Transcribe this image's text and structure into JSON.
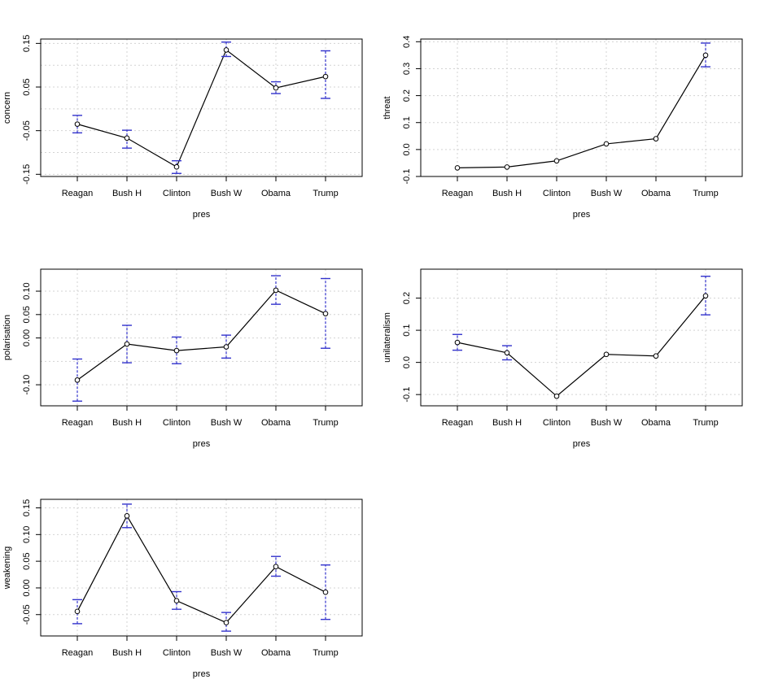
{
  "chart_data": [
    {
      "type": "line",
      "xlabel": "pres",
      "ylabel": "concern",
      "categories": [
        "Reagan",
        "Bush H",
        "Clinton",
        "Bush W",
        "Obama",
        "Trump"
      ],
      "values": [
        -0.035,
        -0.067,
        -0.133,
        0.135,
        0.048,
        0.074
      ],
      "lower": [
        -0.055,
        -0.09,
        -0.148,
        0.12,
        0.035,
        0.024
      ],
      "upper": [
        -0.015,
        -0.049,
        -0.119,
        0.153,
        0.062,
        0.133
      ],
      "ylim": [
        -0.155,
        0.16
      ],
      "yticks": [
        -0.15,
        -0.05,
        0.05,
        0.15
      ],
      "ytick_labels": [
        "-0.15",
        "-0.05",
        "0.05",
        "0.15"
      ],
      "ygrid": [
        -0.15,
        -0.1,
        -0.05,
        0.0,
        0.05,
        0.1,
        0.15
      ],
      "grid": true
    },
    {
      "type": "line",
      "xlabel": "pres",
      "ylabel": "threat",
      "categories": [
        "Reagan",
        "Bush H",
        "Clinton",
        "Bush W",
        "Obama",
        "Trump"
      ],
      "values": [
        -0.068,
        -0.065,
        -0.042,
        0.021,
        0.04,
        0.35
      ],
      "lower": [
        -0.068,
        -0.065,
        -0.042,
        0.021,
        0.04,
        0.307
      ],
      "upper": [
        -0.068,
        -0.065,
        -0.042,
        0.021,
        0.04,
        0.395
      ],
      "ylim": [
        -0.1,
        0.41
      ],
      "yticks": [
        -0.1,
        0.0,
        0.1,
        0.2,
        0.3,
        0.4
      ],
      "ytick_labels": [
        "-0.1",
        "0.0",
        "0.1",
        "0.2",
        "0.3",
        "0.4"
      ],
      "ygrid": [
        -0.1,
        0.0,
        0.1,
        0.2,
        0.3,
        0.4
      ],
      "grid": true
    },
    {
      "type": "line",
      "xlabel": "pres",
      "ylabel": "polarisation",
      "categories": [
        "Reagan",
        "Bush H",
        "Clinton",
        "Bush W",
        "Obama",
        "Trump"
      ],
      "values": [
        -0.09,
        -0.013,
        -0.027,
        -0.019,
        0.102,
        0.052
      ],
      "lower": [
        -0.135,
        -0.053,
        -0.055,
        -0.043,
        0.072,
        -0.022
      ],
      "upper": [
        -0.045,
        0.027,
        0.002,
        0.006,
        0.133,
        0.127
      ],
      "ylim": [
        -0.145,
        0.147
      ],
      "yticks": [
        -0.1,
        0.0,
        0.05,
        0.1
      ],
      "ytick_labels": [
        "-0.10",
        "0.00",
        "0.05",
        "0.10"
      ],
      "ygrid": [
        -0.1,
        -0.05,
        0.0,
        0.05,
        0.1
      ],
      "grid": true
    },
    {
      "type": "line",
      "xlabel": "pres",
      "ylabel": "unilateralism",
      "categories": [
        "Reagan",
        "Bush H",
        "Clinton",
        "Bush W",
        "Obama",
        "Trump"
      ],
      "values": [
        0.062,
        0.03,
        -0.105,
        0.025,
        0.02,
        0.207
      ],
      "lower": [
        0.038,
        0.008,
        -0.105,
        0.025,
        0.02,
        0.148
      ],
      "upper": [
        0.087,
        0.052,
        -0.105,
        0.025,
        0.02,
        0.268
      ],
      "ylim": [
        -0.135,
        0.29
      ],
      "yticks": [
        -0.1,
        0.0,
        0.1,
        0.2
      ],
      "ytick_labels": [
        "-0.1",
        "0.0",
        "0.1",
        "0.2"
      ],
      "ygrid": [
        -0.1,
        0.0,
        0.1,
        0.2
      ],
      "grid": true
    },
    {
      "type": "line",
      "xlabel": "pres",
      "ylabel": "weakening",
      "categories": [
        "Reagan",
        "Bush H",
        "Clinton",
        "Bush W",
        "Obama",
        "Trump"
      ],
      "values": [
        -0.044,
        0.135,
        -0.024,
        -0.065,
        0.04,
        -0.008
      ],
      "lower": [
        -0.067,
        0.113,
        -0.04,
        -0.081,
        0.022,
        -0.059
      ],
      "upper": [
        -0.022,
        0.157,
        -0.007,
        -0.046,
        0.059,
        0.043
      ],
      "ylim": [
        -0.09,
        0.166
      ],
      "yticks": [
        -0.05,
        0.0,
        0.05,
        0.1,
        0.15
      ],
      "ytick_labels": [
        "-0.05",
        "0.00",
        "0.05",
        "0.10",
        "0.15"
      ],
      "ygrid": [
        -0.05,
        0.0,
        0.05,
        0.1,
        0.15
      ],
      "grid": true
    }
  ]
}
